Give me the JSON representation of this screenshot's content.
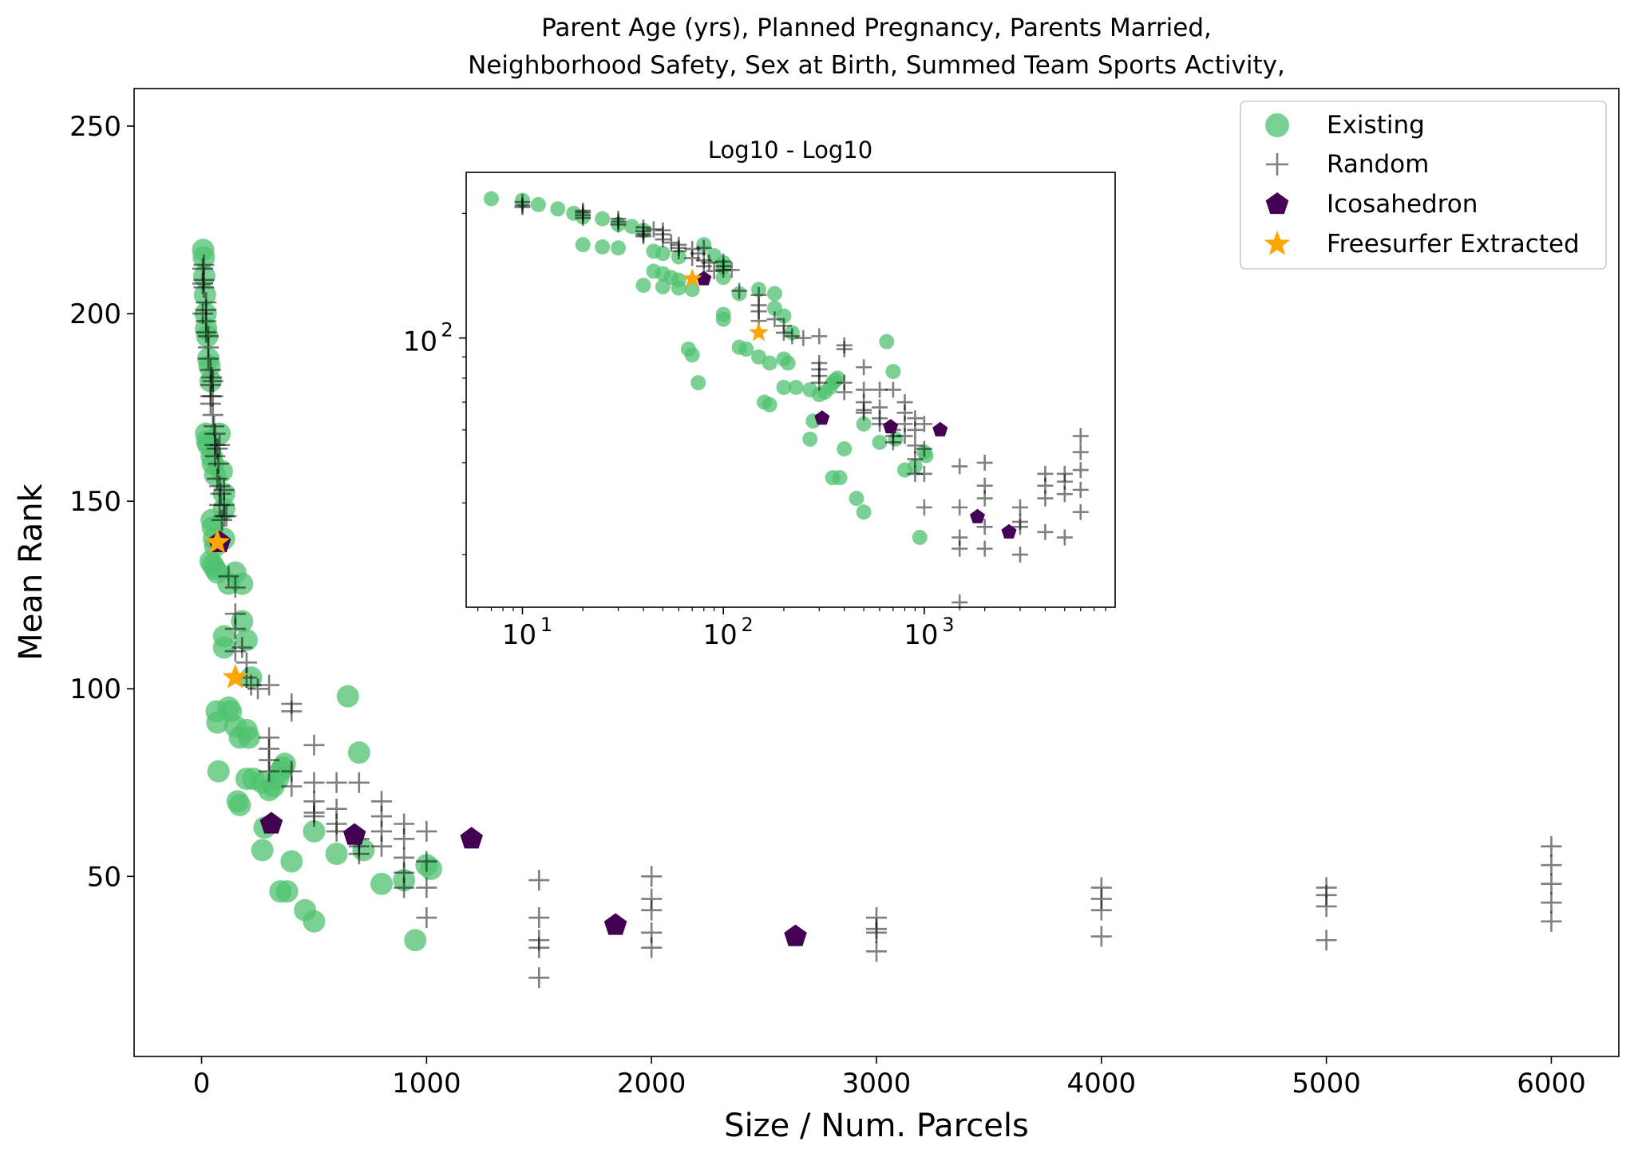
{
  "colors": {
    "existing": "#4fc26f",
    "random": "#555555",
    "icosahedron": "#440154",
    "freesurfer": "#ffa500"
  },
  "chart_data": {
    "type": "scatter",
    "title_lines": [
      "Parent Age (yrs), Planned Pregnancy, Parents Married,",
      "Neighborhood Safety, Sex at Birth, Summed Team Sports Activity,"
    ],
    "xlabel": "Size / Num. Parcels",
    "ylabel": "Mean Rank",
    "xlim": [
      -300,
      6300
    ],
    "ylim": [
      2,
      260
    ],
    "xticks": [
      0,
      1000,
      2000,
      3000,
      4000,
      5000,
      6000
    ],
    "xtick_labels": [
      "0",
      "1000",
      "2000",
      "3000",
      "4000",
      "5000",
      "6000"
    ],
    "yticks": [
      50,
      100,
      150,
      200,
      250
    ],
    "ytick_labels": [
      "50",
      "100",
      "150",
      "200",
      "250"
    ],
    "grid": false,
    "legend_position": "upper right",
    "series": [
      {
        "name": "Existing",
        "marker": "circle",
        "points": [
          [
            7,
            217
          ],
          [
            10,
            215
          ],
          [
            12,
            210
          ],
          [
            15,
            205
          ],
          [
            18,
            200
          ],
          [
            20,
            196
          ],
          [
            25,
            194
          ],
          [
            30,
            188
          ],
          [
            35,
            186
          ],
          [
            40,
            182
          ],
          [
            20,
            168
          ],
          [
            25,
            166
          ],
          [
            30,
            165
          ],
          [
            45,
            162
          ],
          [
            50,
            160
          ],
          [
            60,
            157
          ],
          [
            80,
            168
          ],
          [
            90,
            158
          ],
          [
            100,
            152
          ],
          [
            100,
            148
          ],
          [
            45,
            145
          ],
          [
            50,
            143
          ],
          [
            55,
            140
          ],
          [
            60,
            138
          ],
          [
            100,
            140
          ],
          [
            40,
            134
          ],
          [
            50,
            133
          ],
          [
            60,
            132
          ],
          [
            70,
            131
          ],
          [
            150,
            131
          ],
          [
            120,
            128
          ],
          [
            180,
            128
          ],
          [
            100,
            114
          ],
          [
            100,
            111
          ],
          [
            180,
            118
          ],
          [
            200,
            113
          ],
          [
            67,
            94
          ],
          [
            70,
            91
          ],
          [
            75,
            78
          ],
          [
            120,
            95
          ],
          [
            130,
            94
          ],
          [
            150,
            90
          ],
          [
            170,
            87
          ],
          [
            200,
            89
          ],
          [
            210,
            87
          ],
          [
            220,
            103
          ],
          [
            160,
            70
          ],
          [
            170,
            69
          ],
          [
            200,
            76
          ],
          [
            230,
            76
          ],
          [
            270,
            75
          ],
          [
            300,
            73
          ],
          [
            320,
            74
          ],
          [
            340,
            76
          ],
          [
            350,
            78
          ],
          [
            360,
            79
          ],
          [
            370,
            80
          ],
          [
            280,
            63
          ],
          [
            270,
            57
          ],
          [
            350,
            46
          ],
          [
            380,
            46
          ],
          [
            400,
            54
          ],
          [
            460,
            41
          ],
          [
            500,
            38
          ],
          [
            500,
            62
          ],
          [
            600,
            56
          ],
          [
            650,
            98
          ],
          [
            700,
            83
          ],
          [
            720,
            57
          ],
          [
            800,
            48
          ],
          [
            900,
            49
          ],
          [
            950,
            33
          ],
          [
            1000,
            53
          ],
          [
            1020,
            52
          ]
        ]
      },
      {
        "name": "Random",
        "marker": "plus",
        "points": [
          [
            5,
            212
          ],
          [
            5,
            208
          ],
          [
            5,
            200
          ],
          [
            10,
            213
          ],
          [
            10,
            209
          ],
          [
            10,
            207
          ],
          [
            20,
            203
          ],
          [
            20,
            201
          ],
          [
            20,
            198
          ],
          [
            20,
            195
          ],
          [
            30,
            194
          ],
          [
            30,
            191
          ],
          [
            30,
            188
          ],
          [
            40,
            185
          ],
          [
            40,
            181
          ],
          [
            40,
            178
          ],
          [
            40,
            176
          ],
          [
            45,
            183
          ],
          [
            50,
            182
          ],
          [
            50,
            178
          ],
          [
            50,
            173
          ],
          [
            55,
            170
          ],
          [
            60,
            168
          ],
          [
            60,
            165
          ],
          [
            60,
            162
          ],
          [
            70,
            164
          ],
          [
            70,
            156
          ],
          [
            75,
            160
          ],
          [
            80,
            165
          ],
          [
            80,
            154
          ],
          [
            80,
            149
          ],
          [
            85,
            152
          ],
          [
            90,
            145
          ],
          [
            100,
            153
          ],
          [
            100,
            149
          ],
          [
            100,
            146
          ],
          [
            110,
            146
          ],
          [
            120,
            130
          ],
          [
            150,
            127
          ],
          [
            150,
            120
          ],
          [
            150,
            116
          ],
          [
            150,
            110
          ],
          [
            180,
            111
          ],
          [
            200,
            107
          ],
          [
            200,
            103
          ],
          [
            220,
            101
          ],
          [
            250,
            100
          ],
          [
            300,
            101
          ],
          [
            300,
            87
          ],
          [
            300,
            84
          ],
          [
            300,
            81
          ],
          [
            300,
            78
          ],
          [
            400,
            96
          ],
          [
            400,
            94
          ],
          [
            400,
            78
          ],
          [
            400,
            74
          ],
          [
            500,
            85
          ],
          [
            500,
            75
          ],
          [
            500,
            70
          ],
          [
            500,
            67
          ],
          [
            500,
            66
          ],
          [
            600,
            75
          ],
          [
            600,
            68
          ],
          [
            600,
            64
          ],
          [
            600,
            62
          ],
          [
            700,
            75
          ],
          [
            700,
            60
          ],
          [
            700,
            58
          ],
          [
            700,
            56
          ],
          [
            800,
            70
          ],
          [
            800,
            66
          ],
          [
            800,
            62
          ],
          [
            800,
            58
          ],
          [
            900,
            64
          ],
          [
            900,
            60
          ],
          [
            900,
            55
          ],
          [
            900,
            51
          ],
          [
            900,
            47
          ],
          [
            1000,
            62
          ],
          [
            1000,
            54
          ],
          [
            1000,
            47
          ],
          [
            1000,
            39
          ],
          [
            1500,
            49
          ],
          [
            1500,
            39
          ],
          [
            1500,
            33
          ],
          [
            1500,
            31
          ],
          [
            1500,
            23
          ],
          [
            2000,
            50
          ],
          [
            2000,
            44
          ],
          [
            2000,
            41
          ],
          [
            2000,
            35
          ],
          [
            2000,
            31
          ],
          [
            3000,
            39
          ],
          [
            3000,
            36
          ],
          [
            3000,
            35
          ],
          [
            3000,
            30
          ],
          [
            4000,
            47
          ],
          [
            4000,
            44
          ],
          [
            4000,
            41
          ],
          [
            4000,
            34
          ],
          [
            5000,
            47
          ],
          [
            5000,
            45
          ],
          [
            5000,
            42
          ],
          [
            5000,
            33
          ],
          [
            6000,
            58
          ],
          [
            6000,
            53
          ],
          [
            6000,
            48
          ],
          [
            6000,
            43
          ],
          [
            6000,
            38
          ]
        ]
      },
      {
        "name": "Icosahedron",
        "marker": "pentagon",
        "points": [
          [
            80,
            139
          ],
          [
            310,
            64
          ],
          [
            680,
            61
          ],
          [
            1200,
            60
          ],
          [
            1840,
            37
          ],
          [
            2640,
            34
          ]
        ]
      },
      {
        "name": "Freesurfer Extracted",
        "marker": "star",
        "points": [
          [
            70,
            139
          ],
          [
            150,
            103
          ]
        ]
      }
    ],
    "inset": {
      "title": "Log10 - Log10",
      "xscale": "log",
      "yscale": "log",
      "xlim_log10": [
        0.72,
        3.95
      ],
      "ylim_log10": [
        1.35,
        2.4
      ],
      "xtick_bases": [
        "10",
        "10",
        "10"
      ],
      "xtick_exponents": [
        "1",
        "2",
        "3"
      ],
      "xtick_values": [
        10,
        100,
        1000
      ],
      "ytick_bases": [
        "10"
      ],
      "ytick_exponents": [
        "2"
      ],
      "ytick_values": [
        100
      ]
    }
  }
}
